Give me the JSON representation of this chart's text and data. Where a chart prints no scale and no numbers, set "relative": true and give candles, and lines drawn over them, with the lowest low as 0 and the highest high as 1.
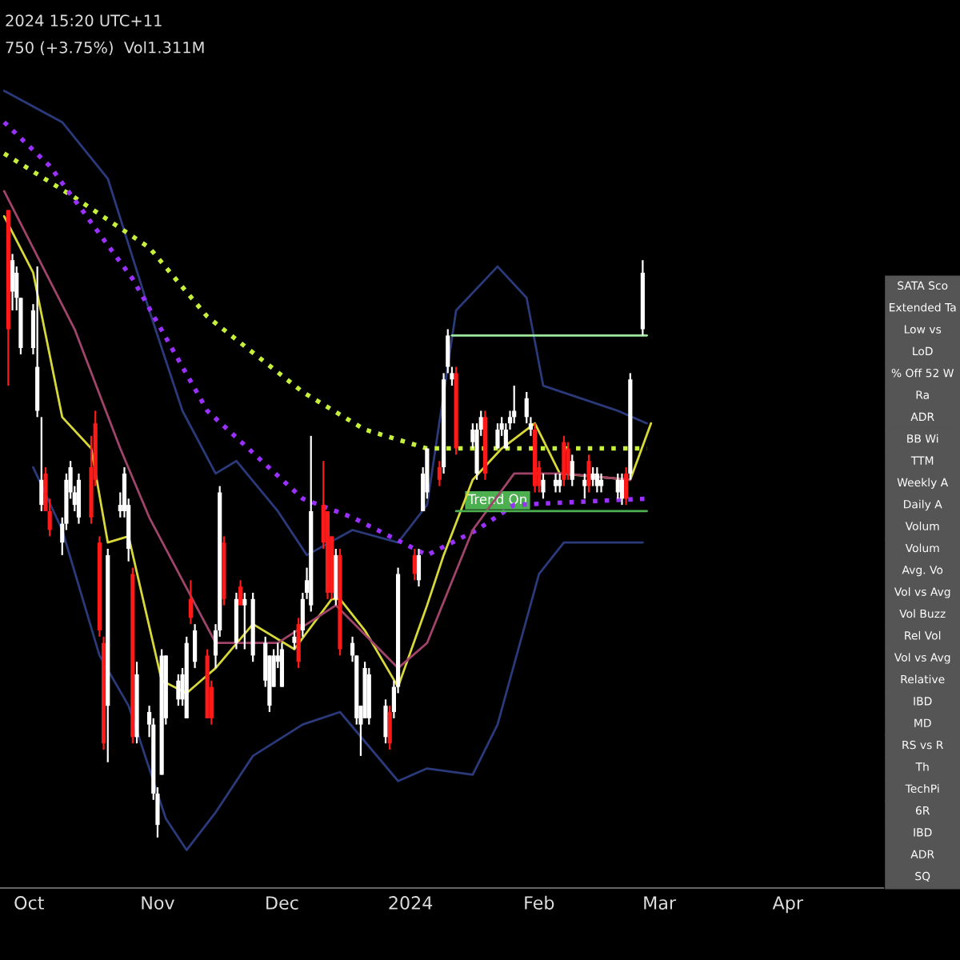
{
  "chart_data": {
    "type": "candlestick",
    "relative": true,
    "x": [
      "2023-09-26",
      "2023-09-27",
      "2023-09-28",
      "2023-09-29",
      "2023-10-02",
      "2023-10-03",
      "2023-10-04",
      "2023-10-05",
      "2023-10-06",
      "2023-10-09",
      "2023-10-10",
      "2023-10-11",
      "2023-10-12",
      "2023-10-13",
      "2023-10-16",
      "2023-10-17",
      "2023-10-18",
      "2023-10-19",
      "2023-10-20",
      "2023-10-23",
      "2023-10-24",
      "2023-10-25",
      "2023-10-26",
      "2023-10-27",
      "2023-10-30",
      "2023-10-31",
      "2023-11-01",
      "2023-11-02",
      "2023-11-03",
      "2023-11-06",
      "2023-11-07",
      "2023-11-08",
      "2023-11-09",
      "2023-11-10",
      "2023-11-13",
      "2023-11-14",
      "2023-11-15",
      "2023-11-16",
      "2023-11-17",
      "2023-11-20",
      "2023-11-21",
      "2023-11-22",
      "2023-11-24",
      "2023-11-27",
      "2023-11-28",
      "2023-11-29",
      "2023-11-30",
      "2023-12-01",
      "2023-12-04",
      "2023-12-05",
      "2023-12-06",
      "2023-12-07",
      "2023-12-08",
      "2023-12-11",
      "2023-12-12",
      "2023-12-13",
      "2023-12-14",
      "2023-12-15",
      "2023-12-18",
      "2023-12-19",
      "2023-12-20",
      "2023-12-21",
      "2023-12-22",
      "2023-12-26",
      "2023-12-27",
      "2023-12-28",
      "2023-12-29",
      "2024-01-02",
      "2024-01-03",
      "2024-01-04",
      "2024-01-05",
      "2024-01-08",
      "2024-01-09",
      "2024-01-10",
      "2024-01-11",
      "2024-01-12",
      "2024-01-16",
      "2024-01-17",
      "2024-01-18",
      "2024-01-19",
      "2024-01-22",
      "2024-01-23",
      "2024-01-24",
      "2024-01-25",
      "2024-01-26",
      "2024-01-29",
      "2024-01-30",
      "2024-01-31",
      "2024-02-01",
      "2024-02-02",
      "2024-02-05",
      "2024-02-06",
      "2024-02-07",
      "2024-02-08",
      "2024-02-09",
      "2024-02-12",
      "2024-02-13",
      "2024-02-14",
      "2024-02-15",
      "2024-02-16",
      "2024-02-20",
      "2024-02-21",
      "2024-02-22",
      "2024-02-23",
      "2024-02-26"
    ],
    "ohlc": [
      [
        1.0,
        1.0,
        0.72,
        0.81
      ],
      [
        0.87,
        0.93,
        0.84,
        0.92
      ],
      [
        0.86,
        0.91,
        0.84,
        0.9
      ],
      [
        0.78,
        0.86,
        0.77,
        0.86
      ],
      [
        0.78,
        0.85,
        0.77,
        0.84
      ],
      [
        0.68,
        0.91,
        0.67,
        0.75
      ],
      [
        0.53,
        0.67,
        0.52,
        0.57
      ],
      [
        0.58,
        0.59,
        0.52,
        0.52
      ],
      [
        0.52,
        0.54,
        0.48,
        0.49
      ],
      [
        0.47,
        0.51,
        0.45,
        0.5
      ],
      [
        0.5,
        0.58,
        0.49,
        0.57
      ],
      [
        0.55,
        0.6,
        0.54,
        0.59
      ],
      [
        0.53,
        0.56,
        0.52,
        0.55
      ],
      [
        0.51,
        0.58,
        0.5,
        0.57
      ],
      [
        0.59,
        0.64,
        0.5,
        0.51
      ],
      [
        0.66,
        0.68,
        0.56,
        0.57
      ],
      [
        0.47,
        0.48,
        0.32,
        0.33
      ],
      [
        0.31,
        0.32,
        0.14,
        0.15
      ],
      [
        0.21,
        0.46,
        0.12,
        0.45
      ],
      [
        0.52,
        0.55,
        0.51,
        0.53
      ],
      [
        0.52,
        0.59,
        0.51,
        0.58
      ],
      [
        0.46,
        0.54,
        0.44,
        0.53
      ],
      [
        0.42,
        0.43,
        0.15,
        0.16
      ],
      [
        0.16,
        0.28,
        0.15,
        0.26
      ],
      [
        0.18,
        0.21,
        0.16,
        0.2
      ],
      [
        0.07,
        0.19,
        0.06,
        0.18
      ],
      [
        0.02,
        0.08,
        0.0,
        0.07
      ],
      [
        0.1,
        0.3,
        0.1,
        0.29
      ],
      [
        0.19,
        0.29,
        0.18,
        0.29
      ],
      [
        0.22,
        0.26,
        0.21,
        0.25
      ],
      [
        0.22,
        0.27,
        0.21,
        0.26
      ],
      [
        0.19,
        0.32,
        0.19,
        0.31
      ],
      [
        0.38,
        0.41,
        0.34,
        0.35
      ],
      [
        0.28,
        0.34,
        0.27,
        0.33
      ],
      [
        0.29,
        0.3,
        0.19,
        0.19
      ],
      [
        0.24,
        0.25,
        0.18,
        0.19
      ],
      [
        0.29,
        0.34,
        0.27,
        0.33
      ],
      [
        0.33,
        0.56,
        0.32,
        0.55
      ],
      [
        0.47,
        0.48,
        0.37,
        0.38
      ],
      [
        0.31,
        0.39,
        0.3,
        0.38
      ],
      [
        0.4,
        0.41,
        0.37,
        0.37
      ],
      [
        0.37,
        0.39,
        0.3,
        0.38
      ],
      [
        0.29,
        0.39,
        0.28,
        0.38
      ],
      [
        0.25,
        0.32,
        0.24,
        0.31
      ],
      [
        0.21,
        0.29,
        0.2,
        0.29
      ],
      [
        0.24,
        0.3,
        0.24,
        0.29
      ],
      [
        0.28,
        0.31,
        0.27,
        0.29
      ],
      [
        0.24,
        0.31,
        0.24,
        0.3
      ],
      [
        0.31,
        0.33,
        0.3,
        0.32
      ],
      [
        0.34,
        0.35,
        0.27,
        0.28
      ],
      [
        0.33,
        0.39,
        0.32,
        0.38
      ],
      [
        0.39,
        0.43,
        0.38,
        0.41
      ],
      [
        0.37,
        0.64,
        0.36,
        0.52
      ],
      [
        0.53,
        0.6,
        0.46,
        0.47
      ],
      [
        0.52,
        0.52,
        0.38,
        0.39
      ],
      [
        0.48,
        0.48,
        0.38,
        0.39
      ],
      [
        0.38,
        0.46,
        0.37,
        0.45
      ],
      [
        0.45,
        0.46,
        0.29,
        0.3
      ],
      [
        0.29,
        0.32,
        0.28,
        0.31
      ],
      [
        0.19,
        0.29,
        0.18,
        0.29
      ],
      [
        0.18,
        0.21,
        0.13,
        0.21
      ],
      [
        0.19,
        0.28,
        0.19,
        0.27
      ],
      [
        0.19,
        0.27,
        0.18,
        0.26
      ],
      [
        0.16,
        0.22,
        0.15,
        0.21
      ],
      [
        0.2,
        0.21,
        0.14,
        0.15
      ],
      [
        0.2,
        0.25,
        0.19,
        0.24
      ],
      [
        0.24,
        0.43,
        0.23,
        0.42
      ],
      [
        0.45,
        0.46,
        0.41,
        0.42
      ],
      [
        0.41,
        0.46,
        0.4,
        0.45
      ],
      [
        0.52,
        0.59,
        0.52,
        0.58
      ],
      [
        0.55,
        0.62,
        0.54,
        0.62
      ],
      [
        0.59,
        0.6,
        0.56,
        0.57
      ],
      [
        0.59,
        0.74,
        0.58,
        0.73
      ],
      [
        0.75,
        0.81,
        0.74,
        0.8
      ],
      [
        0.73,
        0.75,
        0.72,
        0.74
      ],
      [
        0.74,
        0.75,
        0.61,
        0.62
      ],
      [
        0.63,
        0.66,
        0.62,
        0.65
      ],
      [
        0.58,
        0.66,
        0.57,
        0.65
      ],
      [
        0.65,
        0.68,
        0.64,
        0.67
      ],
      [
        0.67,
        0.68,
        0.57,
        0.58
      ],
      [
        0.62,
        0.66,
        0.62,
        0.65
      ],
      [
        0.65,
        0.67,
        0.64,
        0.66
      ],
      [
        0.62,
        0.66,
        0.62,
        0.65
      ],
      [
        0.66,
        0.68,
        0.65,
        0.67
      ],
      [
        0.67,
        0.72,
        0.66,
        0.68
      ],
      [
        0.67,
        0.71,
        0.66,
        0.7
      ],
      [
        0.65,
        0.67,
        0.64,
        0.66
      ],
      [
        0.65,
        0.66,
        0.55,
        0.56
      ],
      [
        0.59,
        0.6,
        0.55,
        0.56
      ],
      [
        0.55,
        0.58,
        0.54,
        0.57
      ],
      [
        0.56,
        0.58,
        0.55,
        0.57
      ],
      [
        0.56,
        0.58,
        0.55,
        0.57
      ],
      [
        0.63,
        0.64,
        0.56,
        0.57
      ],
      [
        0.62,
        0.63,
        0.57,
        0.58
      ],
      [
        0.57,
        0.61,
        0.56,
        0.6
      ],
      [
        0.56,
        0.58,
        0.54,
        0.57
      ],
      [
        0.6,
        0.61,
        0.55,
        0.56
      ],
      [
        0.57,
        0.59,
        0.56,
        0.58
      ],
      [
        0.56,
        0.59,
        0.55,
        0.58
      ],
      [
        0.56,
        0.58,
        0.55,
        0.57
      ],
      [
        0.55,
        0.58,
        0.54,
        0.57
      ],
      [
        0.54,
        0.58,
        0.53,
        0.57
      ],
      [
        0.58,
        0.59,
        0.53,
        0.54
      ],
      [
        0.58,
        0.74,
        0.57,
        0.73
      ],
      [
        0.81,
        0.92,
        0.8,
        0.9
      ]
    ],
    "series": [
      {
        "type": "line",
        "color": "#2a3a7a",
        "line_style": "solid",
        "x": [
          "2023-09-25",
          "2023-10-09",
          "2023-10-20",
          "2023-10-30",
          "2023-11-07",
          "2023-11-15",
          "2023-11-20",
          "2023-11-30",
          "2023-12-07",
          "2023-12-18",
          "2023-12-29",
          "2024-01-05",
          "2024-01-12",
          "2024-01-22",
          "2024-01-29",
          "2024-02-02",
          "2024-02-20",
          "2024-02-27"
        ],
        "values": [
          1.19,
          1.14,
          1.05,
          0.84,
          0.68,
          0.58,
          0.6,
          0.52,
          0.45,
          0.49,
          0.47,
          0.53,
          0.84,
          0.91,
          0.86,
          0.72,
          0.68,
          0.66
        ]
      },
      {
        "type": "line",
        "color": "#2a3a7a",
        "line_style": "solid",
        "x": [
          "2023-10-02",
          "2023-10-09",
          "2023-10-18",
          "2023-10-25",
          "2023-11-03",
          "2023-11-08",
          "2023-11-15",
          "2023-11-24",
          "2023-12-06",
          "2023-12-15",
          "2023-12-29",
          "2024-01-05",
          "2024-01-16",
          "2024-01-22",
          "2024-02-01",
          "2024-02-07",
          "2024-02-26"
        ],
        "values": [
          0.59,
          0.49,
          0.29,
          0.21,
          0.03,
          -0.02,
          0.04,
          0.13,
          0.18,
          0.2,
          0.09,
          0.11,
          0.1,
          0.18,
          0.42,
          0.47,
          0.47
        ]
      },
      {
        "type": "line",
        "color": "#c6f03c",
        "line_style": "dotted",
        "x": [
          "2023-09-25",
          "2023-10-12",
          "2023-10-30",
          "2023-11-13",
          "2023-12-06",
          "2023-12-21",
          "2024-01-05",
          "2024-01-22",
          "2024-02-27"
        ],
        "values": [
          1.09,
          1.02,
          0.94,
          0.83,
          0.71,
          0.65,
          0.62,
          0.62,
          0.62
        ]
      },
      {
        "type": "line",
        "color": "#9b30ff",
        "line_style": "dotted",
        "x": [
          "2023-09-25",
          "2023-10-06",
          "2023-10-26",
          "2023-11-13",
          "2023-12-06",
          "2023-12-18",
          "2024-01-05",
          "2024-01-17",
          "2024-01-26",
          "2024-02-27"
        ],
        "values": [
          1.14,
          1.07,
          0.89,
          0.68,
          0.54,
          0.51,
          0.45,
          0.49,
          0.53,
          0.54
        ]
      },
      {
        "type": "line",
        "color": "#d8d83a",
        "line_style": "solid",
        "x": [
          "2023-09-25",
          "2023-10-02",
          "2023-10-09",
          "2023-10-16",
          "2023-10-20",
          "2023-10-25",
          "2023-11-02",
          "2023-11-08",
          "2023-11-15",
          "2023-11-24",
          "2023-12-04",
          "2023-12-13",
          "2023-12-15",
          "2023-12-21",
          "2023-12-29",
          "2024-01-05",
          "2024-01-09",
          "2024-01-16",
          "2024-01-23",
          "2024-01-31",
          "2024-02-06",
          "2024-02-23",
          "2024-02-28"
        ],
        "values": [
          0.99,
          0.9,
          0.67,
          0.62,
          0.47,
          0.48,
          0.25,
          0.23,
          0.27,
          0.34,
          0.3,
          0.38,
          0.38,
          0.33,
          0.24,
          0.37,
          0.45,
          0.57,
          0.62,
          0.66,
          0.58,
          0.57,
          0.66
        ]
      },
      {
        "type": "line",
        "color": "#a0446a",
        "line_style": "solid",
        "x": [
          "2023-09-25",
          "2023-10-12",
          "2023-10-23",
          "2023-10-30",
          "2023-11-15",
          "2023-11-30",
          "2023-12-14",
          "2023-12-29",
          "2024-01-05",
          "2024-01-16",
          "2024-01-26",
          "2024-02-07",
          "2024-02-23"
        ],
        "values": [
          1.03,
          0.81,
          0.62,
          0.51,
          0.31,
          0.31,
          0.37,
          0.27,
          0.31,
          0.49,
          0.58,
          0.58,
          0.57
        ]
      },
      {
        "type": "line",
        "color": "#9ee89e",
        "line_style": "solid",
        "x": [
          "2024-01-11",
          "2024-02-27"
        ],
        "values": [
          0.8,
          0.8
        ]
      },
      {
        "type": "line",
        "color": "#4caf50",
        "line_style": "solid",
        "x": [
          "2024-01-12",
          "2024-02-27"
        ],
        "values": [
          0.52,
          0.52
        ]
      }
    ],
    "xlim": [
      "2023-09-24",
      "2024-04-24"
    ],
    "xticks": [
      {
        "value": "2023-10-01",
        "label": "Oct"
      },
      {
        "value": "2023-11-01",
        "label": "Nov"
      },
      {
        "value": "2023-12-01",
        "label": "Dec"
      },
      {
        "value": "2024-01-01",
        "label": "2024"
      },
      {
        "value": "2024-02-01",
        "label": "Feb"
      },
      {
        "value": "2024-03-01",
        "label": "Mar"
      },
      {
        "value": "2024-04-01",
        "label": "Apr"
      }
    ],
    "grid": false,
    "legend": false,
    "annotations": [
      "2024 15:20 UTC+11",
      "750 (+3.75%)  Vol1.311M",
      {
        "text": "Trend On",
        "x": "2024-01-22",
        "y": 0.52
      },
      "SATA Sco",
      "Extended Ta",
      "Low vs",
      "LoD",
      "% Off 52 W",
      "Ra",
      "ADR",
      "BB Wi",
      "TTM",
      "Weekly A",
      "Daily A",
      "Volum",
      "Volum",
      "Avg. Vo",
      "Vol vs Avg",
      "Vol Buzz",
      "Rel Vol",
      "Vol vs Avg",
      "Relative",
      "IBD",
      "MD",
      "RS vs R",
      "Th",
      "TechPi",
      "6R",
      "IBD",
      "ADR",
      "SQ"
    ]
  }
}
